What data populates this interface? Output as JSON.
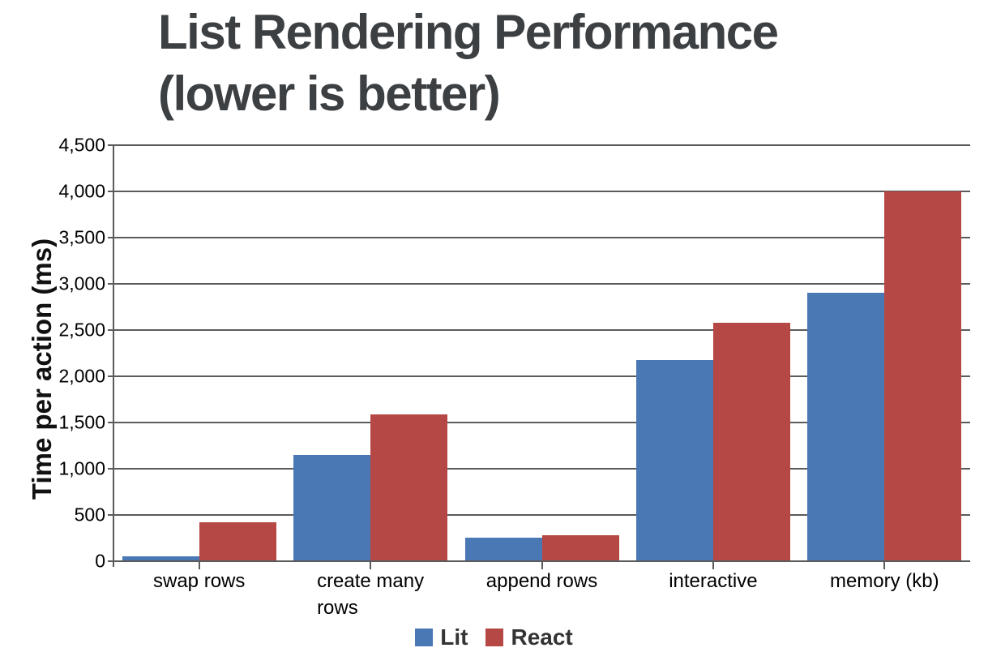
{
  "chart_data": {
    "type": "bar",
    "title": "List Rendering Performance (lower is better)",
    "title_line1": "List Rendering Performance",
    "title_line2": "(lower is better)",
    "ylabel": "Time per action (ms)",
    "xlabel": "",
    "categories": [
      "swap rows",
      "create many\nrows",
      "append rows",
      "interactive",
      "memory (kb)"
    ],
    "series": [
      {
        "name": "Lit",
        "color": "#4A78B5",
        "values": [
          50,
          1150,
          250,
          2175,
          2900
        ]
      },
      {
        "name": "React",
        "color": "#B54845",
        "values": [
          420,
          1590,
          280,
          2580,
          4000
        ]
      }
    ],
    "ylim": [
      0,
      4500
    ],
    "ytick_step": 500,
    "ytick_labels": [
      "0",
      "500",
      "1,000",
      "1,500",
      "2,000",
      "2,500",
      "3,000",
      "3,500",
      "4,000",
      "4,500"
    ],
    "grid": true,
    "legend_position": "bottom",
    "colors": {
      "axis_and_grid": "#5B5B5B",
      "title_text": "#3C4043",
      "tick_text": "#000000",
      "legend_text": "#333333",
      "background": "#FFFFFF"
    }
  }
}
